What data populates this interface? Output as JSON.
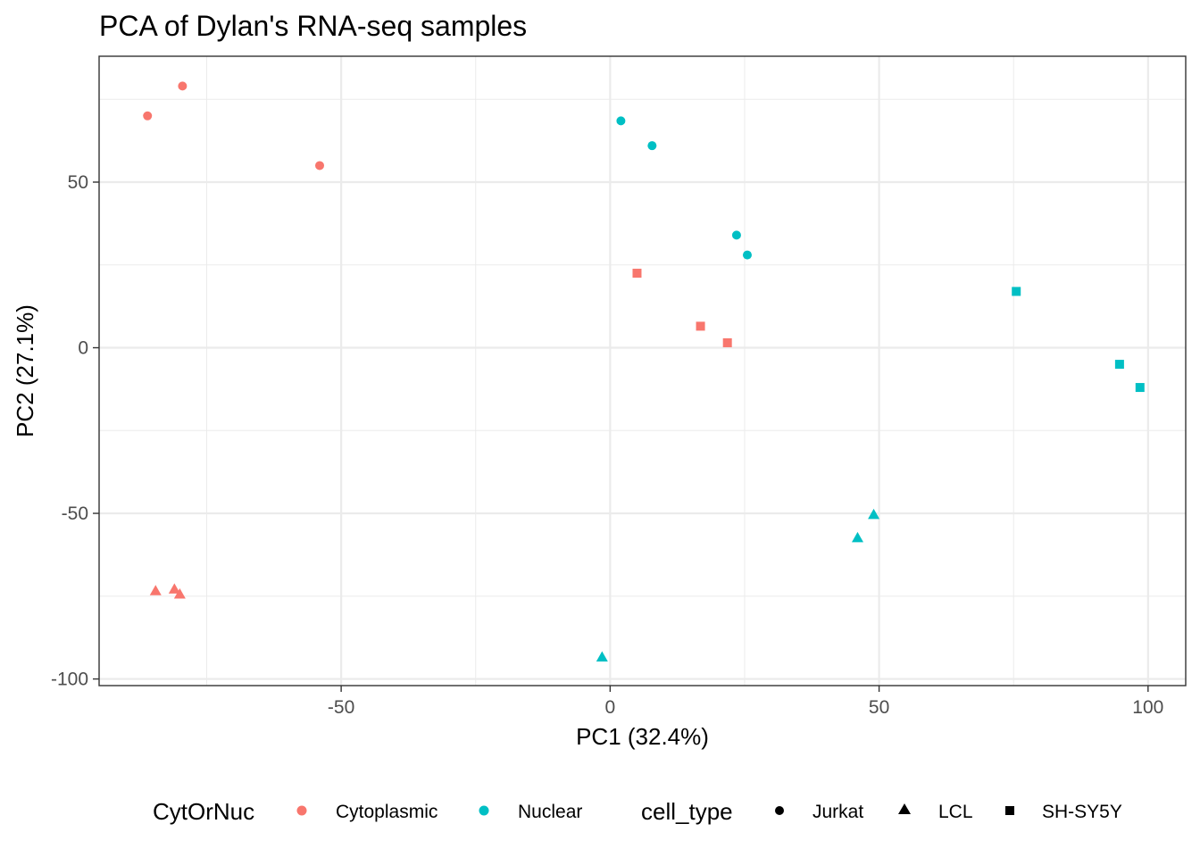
{
  "chart_data": {
    "type": "scatter",
    "title": "PCA of Dylan's RNA-seq samples",
    "xlabel": "PC1 (32.4%)",
    "ylabel": "PC2 (27.1%)",
    "xlim": [
      -95,
      107
    ],
    "ylim": [
      -102,
      88
    ],
    "x_ticks": [
      -50,
      0,
      50,
      100
    ],
    "x_tick_labels": [
      "-50",
      "0",
      "50",
      "100"
    ],
    "y_ticks": [
      -100,
      -50,
      0,
      50
    ],
    "y_tick_labels": [
      "-100",
      "-50",
      "0",
      "50"
    ],
    "grid": true,
    "legend_position": "bottom",
    "color_legend": {
      "title": "CytOrNuc",
      "entries": [
        {
          "label": "Cytoplasmic",
          "color": "#F8766D"
        },
        {
          "label": "Nuclear",
          "color": "#00BFC4"
        }
      ]
    },
    "shape_legend": {
      "title": "cell_type",
      "entries": [
        {
          "label": "Jurkat",
          "shape": "circle"
        },
        {
          "label": "LCL",
          "shape": "triangle"
        },
        {
          "label": "SH-SY5Y",
          "shape": "square"
        }
      ]
    },
    "points": [
      {
        "x": -86,
        "y": 70,
        "color": "Cytoplasmic",
        "cell_type": "Jurkat"
      },
      {
        "x": -79.5,
        "y": 79,
        "color": "Cytoplasmic",
        "cell_type": "Jurkat"
      },
      {
        "x": -54,
        "y": 55,
        "color": "Cytoplasmic",
        "cell_type": "Jurkat"
      },
      {
        "x": -84.5,
        "y": -73.5,
        "color": "Cytoplasmic",
        "cell_type": "LCL"
      },
      {
        "x": -81,
        "y": -73,
        "color": "Cytoplasmic",
        "cell_type": "LCL"
      },
      {
        "x": -80,
        "y": -74.5,
        "color": "Cytoplasmic",
        "cell_type": "LCL"
      },
      {
        "x": 5,
        "y": 22.5,
        "color": "Cytoplasmic",
        "cell_type": "SH-SY5Y"
      },
      {
        "x": 16.8,
        "y": 6.5,
        "color": "Cytoplasmic",
        "cell_type": "SH-SY5Y"
      },
      {
        "x": 21.8,
        "y": 1.5,
        "color": "Cytoplasmic",
        "cell_type": "SH-SY5Y"
      },
      {
        "x": 2,
        "y": 68.5,
        "color": "Nuclear",
        "cell_type": "Jurkat"
      },
      {
        "x": 7.8,
        "y": 61,
        "color": "Nuclear",
        "cell_type": "Jurkat"
      },
      {
        "x": 23.5,
        "y": 34,
        "color": "Nuclear",
        "cell_type": "Jurkat"
      },
      {
        "x": 25.5,
        "y": 28,
        "color": "Nuclear",
        "cell_type": "Jurkat"
      },
      {
        "x": -1.5,
        "y": -93.5,
        "color": "Nuclear",
        "cell_type": "LCL"
      },
      {
        "x": 46,
        "y": -57.5,
        "color": "Nuclear",
        "cell_type": "LCL"
      },
      {
        "x": 49,
        "y": -50.5,
        "color": "Nuclear",
        "cell_type": "LCL"
      },
      {
        "x": 75.5,
        "y": 17,
        "color": "Nuclear",
        "cell_type": "SH-SY5Y"
      },
      {
        "x": 94.7,
        "y": -5,
        "color": "Nuclear",
        "cell_type": "SH-SY5Y"
      },
      {
        "x": 98.5,
        "y": -12,
        "color": "Nuclear",
        "cell_type": "SH-SY5Y"
      }
    ]
  }
}
